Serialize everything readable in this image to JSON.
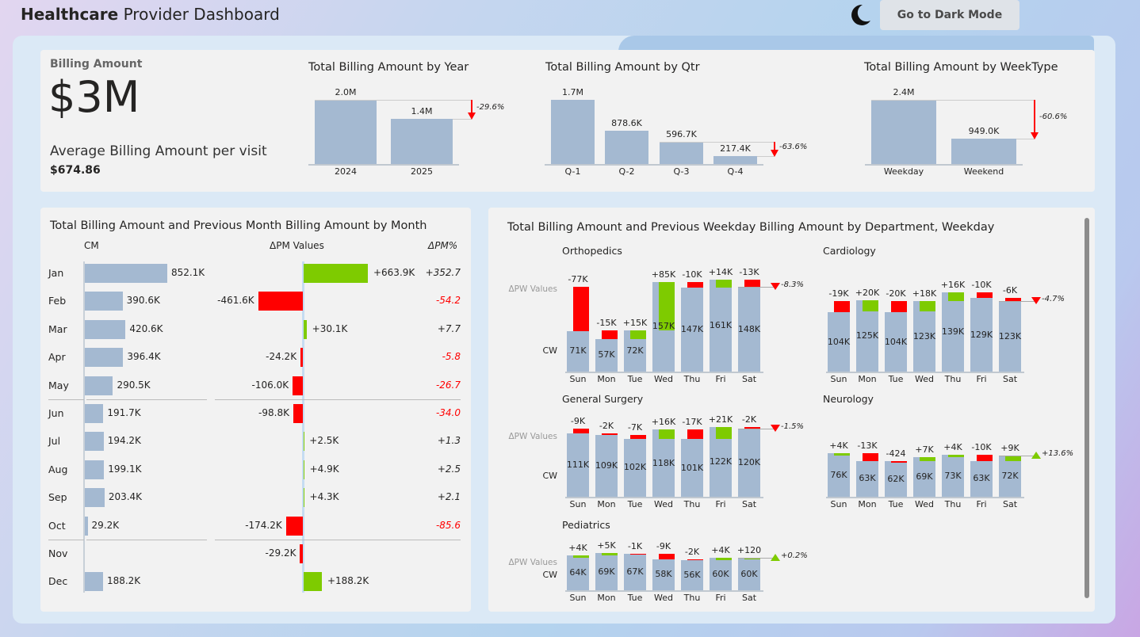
{
  "header": {
    "title_bold": "Healthcare",
    "title_rest": " Provider Dashboard",
    "dark_mode_label": "Go to Dark Mode",
    "moon_icon": "moon-icon"
  },
  "colors": {
    "bar": "#a4b9d1",
    "negative": "#ff0000",
    "positive": "#7ecb00"
  },
  "kpi": {
    "label": "Billing Amount",
    "value": "$3M",
    "avg_label": "Average Billing Amount per visit",
    "avg_value": "$674.86"
  },
  "year_chart": {
    "title": "Total Billing Amount by Year",
    "categories": [
      "2024",
      "2025"
    ],
    "values": [
      2.0,
      1.4
    ],
    "labels": [
      "2.0M",
      "1.4M"
    ],
    "variance": "-29.6%"
  },
  "qtr_chart": {
    "title": "Total Billing Amount by Qtr",
    "categories": [
      "Q-1",
      "Q-2",
      "Q-3",
      "Q-4"
    ],
    "values": [
      1.7,
      0.8786,
      0.5967,
      0.2174
    ],
    "labels": [
      "1.7M",
      "878.6K",
      "596.7K",
      "217.4K"
    ],
    "variance": "-63.6%"
  },
  "week_chart": {
    "title": "Total Billing Amount by WeekType",
    "categories": [
      "Weekday",
      "Weekend"
    ],
    "values": [
      2.4,
      0.949
    ],
    "labels": [
      "2.4M",
      "949.0K"
    ],
    "variance": "-60.6%"
  },
  "month_chart": {
    "title": "Total Billing Amount and Previous Month Billing Amount by Month",
    "headers": {
      "cm": "CM",
      "dpm": "ΔPM Values",
      "dpm_pct": "ΔPM%"
    },
    "rows": [
      {
        "month": "Jan",
        "cm": 852.1,
        "cm_label": "852.1K",
        "dpm": 663.9,
        "dpm_label": "+663.9K",
        "pct": "+352.7"
      },
      {
        "month": "Feb",
        "cm": 390.6,
        "cm_label": "390.6K",
        "dpm": -461.6,
        "dpm_label": "-461.6K",
        "pct": "-54.2"
      },
      {
        "month": "Mar",
        "cm": 420.6,
        "cm_label": "420.6K",
        "dpm": 30.1,
        "dpm_label": "+30.1K",
        "pct": "+7.7"
      },
      {
        "month": "Apr",
        "cm": 396.4,
        "cm_label": "396.4K",
        "dpm": -24.2,
        "dpm_label": "-24.2K",
        "pct": "-5.8"
      },
      {
        "month": "May",
        "cm": 290.5,
        "cm_label": "290.5K",
        "dpm": -106.0,
        "dpm_label": "-106.0K",
        "pct": "-26.7"
      },
      {
        "month": "Jun",
        "cm": 191.7,
        "cm_label": "191.7K",
        "dpm": -98.8,
        "dpm_label": "-98.8K",
        "pct": "-34.0"
      },
      {
        "month": "Jul",
        "cm": 194.2,
        "cm_label": "194.2K",
        "dpm": 2.5,
        "dpm_label": "+2.5K",
        "pct": "+1.3"
      },
      {
        "month": "Aug",
        "cm": 199.1,
        "cm_label": "199.1K",
        "dpm": 4.9,
        "dpm_label": "+4.9K",
        "pct": "+2.5"
      },
      {
        "month": "Sep",
        "cm": 203.4,
        "cm_label": "203.4K",
        "dpm": 4.3,
        "dpm_label": "+4.3K",
        "pct": "+2.1"
      },
      {
        "month": "Oct",
        "cm": 29.2,
        "cm_label": "29.2K",
        "dpm": -174.2,
        "dpm_label": "-174.2K",
        "pct": "-85.6"
      },
      {
        "month": "Nov",
        "cm": null,
        "cm_label": "",
        "dpm": -29.2,
        "dpm_label": "-29.2K",
        "pct": ""
      },
      {
        "month": "Dec",
        "cm": 188.2,
        "cm_label": "188.2K",
        "dpm": 188.2,
        "dpm_label": "+188.2K",
        "pct": ""
      }
    ]
  },
  "dept_chart": {
    "title": "Total Billing Amount and Previous Weekday Billing Amount by Department, Weekday",
    "row_label_delta": "ΔPW Values",
    "row_label_cw": "CW",
    "days": [
      "Sun",
      "Mon",
      "Tue",
      "Wed",
      "Thu",
      "Fri",
      "Sat"
    ],
    "departments": [
      {
        "name": "Orthopedics",
        "cw": [
          71,
          57,
          72,
          157,
          147,
          161,
          148
        ],
        "cw_labels": [
          "71K",
          "57K",
          "72K",
          "157K",
          "147K",
          "161K",
          "148K"
        ],
        "delta": [
          -77,
          -15,
          15,
          85,
          -10,
          14,
          -13
        ],
        "delta_labels": [
          "-77K",
          "-15K",
          "+15K",
          "+85K",
          "-10K",
          "+14K",
          "-13K"
        ],
        "variance": "-8.3%"
      },
      {
        "name": "Cardiology",
        "cw": [
          104,
          125,
          104,
          123,
          139,
          129,
          123
        ],
        "cw_labels": [
          "104K",
          "125K",
          "104K",
          "123K",
          "139K",
          "129K",
          "123K"
        ],
        "delta": [
          -19,
          20,
          -20,
          18,
          16,
          -10,
          -6
        ],
        "delta_labels": [
          "-19K",
          "+20K",
          "-20K",
          "+18K",
          "+16K",
          "-10K",
          "-6K"
        ],
        "variance": "-4.7%"
      },
      {
        "name": "General Surgery",
        "cw": [
          111,
          109,
          102,
          118,
          101,
          122,
          120
        ],
        "cw_labels": [
          "111K",
          "109K",
          "102K",
          "118K",
          "101K",
          "122K",
          "120K"
        ],
        "delta": [
          -9,
          -2,
          -7,
          16,
          -17,
          21,
          -2
        ],
        "delta_labels": [
          "-9K",
          "-2K",
          "-7K",
          "+16K",
          "-17K",
          "+21K",
          "-2K"
        ],
        "variance": "-1.5%"
      },
      {
        "name": "Neurology",
        "cw": [
          76,
          63,
          62,
          69,
          73,
          63,
          72
        ],
        "cw_labels": [
          "76K",
          "63K",
          "62K",
          "69K",
          "73K",
          "63K",
          "72K"
        ],
        "delta": [
          4,
          -13,
          -0.424,
          7,
          4,
          -10,
          9
        ],
        "delta_labels": [
          "+4K",
          "-13K",
          "-424",
          "+7K",
          "+4K",
          "-10K",
          "+9K"
        ],
        "variance": "+13.6%"
      },
      {
        "name": "Pediatrics",
        "cw": [
          64,
          69,
          67,
          58,
          56,
          60,
          60
        ],
        "cw_labels": [
          "64K",
          "69K",
          "67K",
          "58K",
          "56K",
          "60K",
          "60K"
        ],
        "delta": [
          4,
          5,
          -1,
          -9,
          -2,
          4,
          0.12
        ],
        "delta_labels": [
          "+4K",
          "+5K",
          "-1K",
          "-9K",
          "-2K",
          "+4K",
          "+120"
        ],
        "variance": "+0.2%"
      }
    ]
  }
}
